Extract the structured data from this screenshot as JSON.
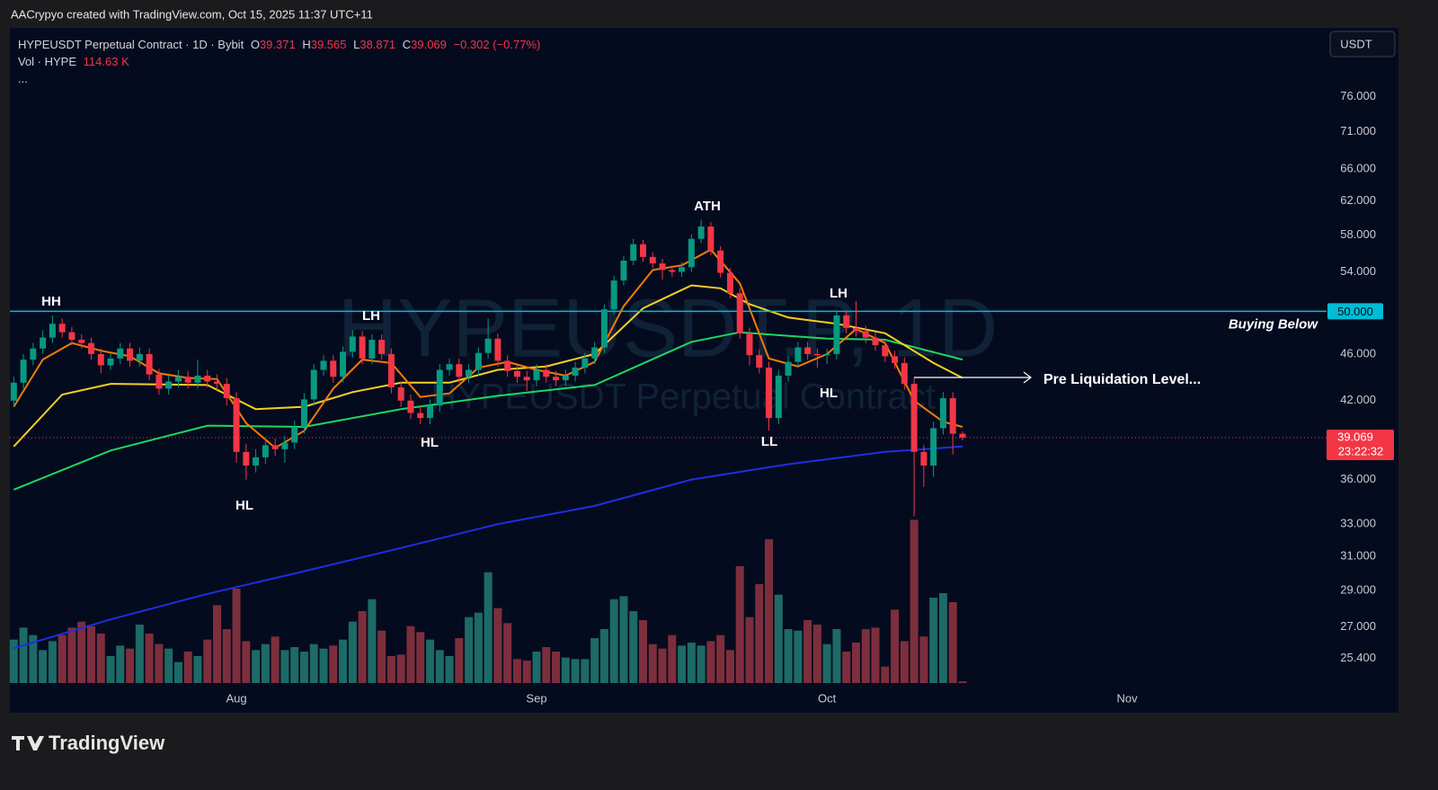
{
  "page": {
    "header": "AACrypyo created with TradingView.com, Oct 15, 2025 11:37 UTC+11",
    "logo": "TradingView",
    "currency": "USDT",
    "more": "..."
  },
  "chart_data": {
    "type": "candlestick",
    "symbol": "HYPEUSDT Perpetual Contract · 1D · Bybit",
    "change": "−0.302 (−0.77%)",
    "volume_title": "Vol · HYPE",
    "volume_label": "114.63 K",
    "watermark": "HYPEUSDT.P, 1D",
    "watermark_subtitle": "HYPEUSDT Perpetual Contract",
    "ohlc_letters": [
      "O",
      "H",
      "L",
      "C"
    ],
    "countdown": "23:22:32",
    "log_scale": true,
    "grid": false,
    "up_color": "#089981",
    "down_color": "#f23645",
    "volume_up_color": "#1d6a66",
    "volume_down_color": "#7d2e3c",
    "xlim": [
      -0.4,
      135.6
    ],
    "xticks": [
      {
        "value": 23,
        "label": "Aug"
      },
      {
        "value": 54,
        "label": "Sep"
      },
      {
        "value": 84,
        "label": "Oct"
      },
      {
        "value": 115,
        "label": "Nov"
      }
    ],
    "ylim": [
      24.2,
      86.8
    ],
    "yticks": [
      {
        "value": 76,
        "label": "76.000"
      },
      {
        "value": 71,
        "label": "71.000"
      },
      {
        "value": 66,
        "label": "66.000"
      },
      {
        "value": 62,
        "label": "62.000"
      },
      {
        "value": 58,
        "label": "58.000"
      },
      {
        "value": 54,
        "label": "54.000"
      },
      {
        "value": 46,
        "label": "46.000"
      },
      {
        "value": 42,
        "label": "42.000"
      },
      {
        "value": 36,
        "label": "36.000"
      },
      {
        "value": 33,
        "label": "33.000"
      },
      {
        "value": 31,
        "label": "31.000"
      },
      {
        "value": 29,
        "label": "29.000"
      },
      {
        "value": 27,
        "label": "27.000"
      },
      {
        "value": 25.4,
        "label": "25.400"
      }
    ],
    "hline": {
      "value": 50,
      "label": "50.000",
      "text": "Buying Below",
      "color": "#00bcd4"
    },
    "pre_liquidation": "Pre Liquidation Level...",
    "annotations": [
      "HH",
      "LH",
      "HL",
      "HL",
      "ATH",
      "LL",
      "LH",
      "HL"
    ],
    "open": [
      42.0,
      43.5,
      45.5,
      46.5,
      47.5,
      48.8,
      48.0,
      47.3,
      47.0,
      46.0,
      45.0,
      45.6,
      46.5,
      45.4,
      46.0,
      44.2,
      43.0,
      43.6,
      44.0,
      43.5,
      44.1,
      43.6,
      43.4,
      42.2,
      38.0,
      37.0,
      37.6,
      38.5,
      38.2,
      38.7,
      39.9,
      42.1,
      44.6,
      45.4,
      44.0,
      46.2,
      47.6,
      45.6,
      47.3,
      46.0,
      43.1,
      42.0,
      41.0,
      40.6,
      41.6,
      44.6,
      45.1,
      44.0,
      44.6,
      46.1,
      47.4,
      45.4,
      44.5,
      44.0,
      43.7,
      44.6,
      44.0,
      43.7,
      44.1,
      44.8,
      45.6,
      46.6,
      50.2,
      53.1,
      55.2,
      57.0,
      55.6,
      54.9,
      54.2,
      54.0,
      54.5,
      57.6,
      59.0,
      56.3,
      53.9,
      51.8,
      47.9,
      45.9,
      44.8,
      40.6,
      44.1,
      45.3,
      46.6,
      46.0,
      45.9,
      46.0,
      49.6,
      48.4,
      48.1,
      47.5,
      46.8,
      45.8,
      45.2,
      43.4,
      38.0,
      37.0,
      39.8,
      42.2,
      39.371
    ],
    "high": [
      44.0,
      46.0,
      47.0,
      48.2,
      49.6,
      49.3,
      48.5,
      47.8,
      47.5,
      46.5,
      46.1,
      47.0,
      47.0,
      46.6,
      46.5,
      44.7,
      44.1,
      44.6,
      44.5,
      45.5,
      44.6,
      44.2,
      43.9,
      42.7,
      38.6,
      38.2,
      39.0,
      39.0,
      39.2,
      40.4,
      42.6,
      45.1,
      45.9,
      45.9,
      46.7,
      48.2,
      48.1,
      47.8,
      47.8,
      46.5,
      43.6,
      42.5,
      41.5,
      42.1,
      45.1,
      45.6,
      45.6,
      45.1,
      46.6,
      49.3,
      47.9,
      45.9,
      45.0,
      44.5,
      45.1,
      45.1,
      44.5,
      44.6,
      45.3,
      46.1,
      47.1,
      50.7,
      53.6,
      55.7,
      57.6,
      57.5,
      56.1,
      55.4,
      54.7,
      55.0,
      58.1,
      59.8,
      59.5,
      56.8,
      54.4,
      52.3,
      48.4,
      46.4,
      45.3,
      44.6,
      45.8,
      47.1,
      47.1,
      46.5,
      46.5,
      50.1,
      50.1,
      51.0,
      48.6,
      48.0,
      47.3,
      46.3,
      45.7,
      43.9,
      38.5,
      40.3,
      42.7,
      42.7,
      39.565
    ],
    "low": [
      41.5,
      43.0,
      45.0,
      46.0,
      47.0,
      47.5,
      46.8,
      46.5,
      45.5,
      44.3,
      44.6,
      45.1,
      44.9,
      44.9,
      43.7,
      42.5,
      42.5,
      43.1,
      43.0,
      43.0,
      43.1,
      42.9,
      41.6,
      37.2,
      36.0,
      36.5,
      37.1,
      37.7,
      37.2,
      38.2,
      39.4,
      41.6,
      44.1,
      43.5,
      43.5,
      45.7,
      45.1,
      45.1,
      45.5,
      42.6,
      41.5,
      40.5,
      40.1,
      40.1,
      41.1,
      44.1,
      43.5,
      43.5,
      44.1,
      45.6,
      44.9,
      44.0,
      43.5,
      42.8,
      43.2,
      43.5,
      43.2,
      43.2,
      43.6,
      44.3,
      45.1,
      46.1,
      49.7,
      52.6,
      54.7,
      55.1,
      54.4,
      53.2,
      53.5,
      53.5,
      54.0,
      57.1,
      55.8,
      53.4,
      51.3,
      47.4,
      45.0,
      44.3,
      39.6,
      40.1,
      43.6,
      44.8,
      45.5,
      44.8,
      45.1,
      45.5,
      47.9,
      47.6,
      47.0,
      46.3,
      45.3,
      44.7,
      42.9,
      33.5,
      35.5,
      36.2,
      39.3,
      37.8,
      38.871
    ],
    "close": [
      43.5,
      45.5,
      46.5,
      47.5,
      48.8,
      48.0,
      47.3,
      47.0,
      46.0,
      45.0,
      45.6,
      46.5,
      45.4,
      46.0,
      44.2,
      43.0,
      43.6,
      44.0,
      43.5,
      44.1,
      43.6,
      43.4,
      42.2,
      38.0,
      37.0,
      37.6,
      38.5,
      38.2,
      38.7,
      39.9,
      42.1,
      44.6,
      45.4,
      44.0,
      46.2,
      47.6,
      45.6,
      47.3,
      46.0,
      43.1,
      42.0,
      41.0,
      40.6,
      41.6,
      44.6,
      45.1,
      44.0,
      44.6,
      46.1,
      47.4,
      45.4,
      44.5,
      44.0,
      43.7,
      44.6,
      44.0,
      43.7,
      44.1,
      44.8,
      45.6,
      46.6,
      50.2,
      53.1,
      55.2,
      57.0,
      55.6,
      54.9,
      54.2,
      54.0,
      54.5,
      57.6,
      59.0,
      56.3,
      53.9,
      51.8,
      47.9,
      45.9,
      44.8,
      40.6,
      44.1,
      45.3,
      46.6,
      46.0,
      45.9,
      46.0,
      49.6,
      48.4,
      48.1,
      47.5,
      46.8,
      45.8,
      45.2,
      43.4,
      38.0,
      37.0,
      39.8,
      42.2,
      39.371,
      39.069
    ],
    "volume_lim": [
      0,
      12000
    ],
    "volume": [
      2900,
      3700,
      3200,
      2200,
      2800,
      3200,
      3700,
      4100,
      3800,
      3300,
      1800,
      2500,
      2300,
      3900,
      3300,
      2600,
      2300,
      1400,
      2100,
      1800,
      2900,
      5200,
      3600,
      6300,
      2800,
      2200,
      2600,
      3100,
      2200,
      2400,
      2100,
      2600,
      2300,
      2500,
      2900,
      4100,
      4800,
      5600,
      3500,
      1800,
      1900,
      3800,
      3400,
      2900,
      2200,
      1800,
      3000,
      4400,
      4700,
      7400,
      5000,
      4000,
      1600,
      1500,
      2100,
      2400,
      2100,
      1700,
      1600,
      1600,
      3000,
      3600,
      5600,
      5800,
      4800,
      4200,
      2600,
      2300,
      3200,
      2500,
      2700,
      2500,
      2800,
      3200,
      2200,
      7800,
      4400,
      6600,
      9600,
      5900,
      3600,
      3500,
      4200,
      3900,
      2600,
      3600,
      2100,
      2700,
      3600,
      3700,
      1100,
      4900,
      2800,
      10900,
      3100,
      5700,
      6000,
      5400,
      114.63
    ],
    "series": [
      {
        "color": "#1f2fe0",
        "x": [
          0,
          10,
          20,
          30,
          40,
          50,
          60,
          70,
          80,
          90,
          98
        ],
        "values": [
          25.9,
          27.4,
          28.8,
          30.1,
          31.5,
          33.0,
          34.2,
          36.0,
          37.1,
          38.0,
          38.4
        ]
      },
      {
        "color": "#1ed760",
        "x": [
          0,
          10,
          20,
          30,
          40,
          50,
          60,
          70,
          75,
          84,
          90,
          98
        ],
        "values": [
          35.3,
          38.1,
          40.0,
          39.9,
          41.3,
          42.4,
          43.3,
          47.1,
          48.0,
          47.4,
          47.3,
          45.5
        ]
      },
      {
        "color": "#f5d020",
        "x": [
          0,
          5,
          10,
          20,
          25,
          30,
          35,
          40,
          45,
          50,
          55,
          60,
          65,
          70,
          73,
          76,
          80,
          85,
          90,
          95,
          98
        ],
        "values": [
          38.4,
          42.5,
          43.4,
          43.3,
          41.3,
          41.5,
          42.7,
          43.5,
          43.5,
          44.6,
          44.9,
          46.0,
          50.3,
          52.6,
          52.3,
          50.7,
          49.4,
          48.8,
          47.9,
          45.2,
          43.9
        ]
      },
      {
        "color": "#f57c00",
        "x": [
          0,
          3,
          6,
          9,
          12,
          15,
          18,
          21,
          24,
          27,
          30,
          33,
          36,
          39,
          42,
          45,
          48,
          51,
          54,
          57,
          60,
          63,
          66,
          69,
          72,
          75,
          78,
          81,
          84,
          87,
          90,
          93,
          96,
          98
        ],
        "values": [
          41.5,
          45.5,
          47.0,
          46.3,
          45.8,
          44.3,
          43.9,
          43.8,
          40.2,
          38.3,
          39.6,
          43.0,
          45.5,
          45.2,
          42.3,
          42.6,
          44.8,
          45.3,
          44.6,
          44.1,
          45.3,
          50.5,
          54.2,
          54.7,
          56.4,
          52.8,
          45.6,
          44.9,
          46.0,
          48.3,
          47.0,
          42.0,
          40.3,
          39.9
        ]
      }
    ]
  }
}
